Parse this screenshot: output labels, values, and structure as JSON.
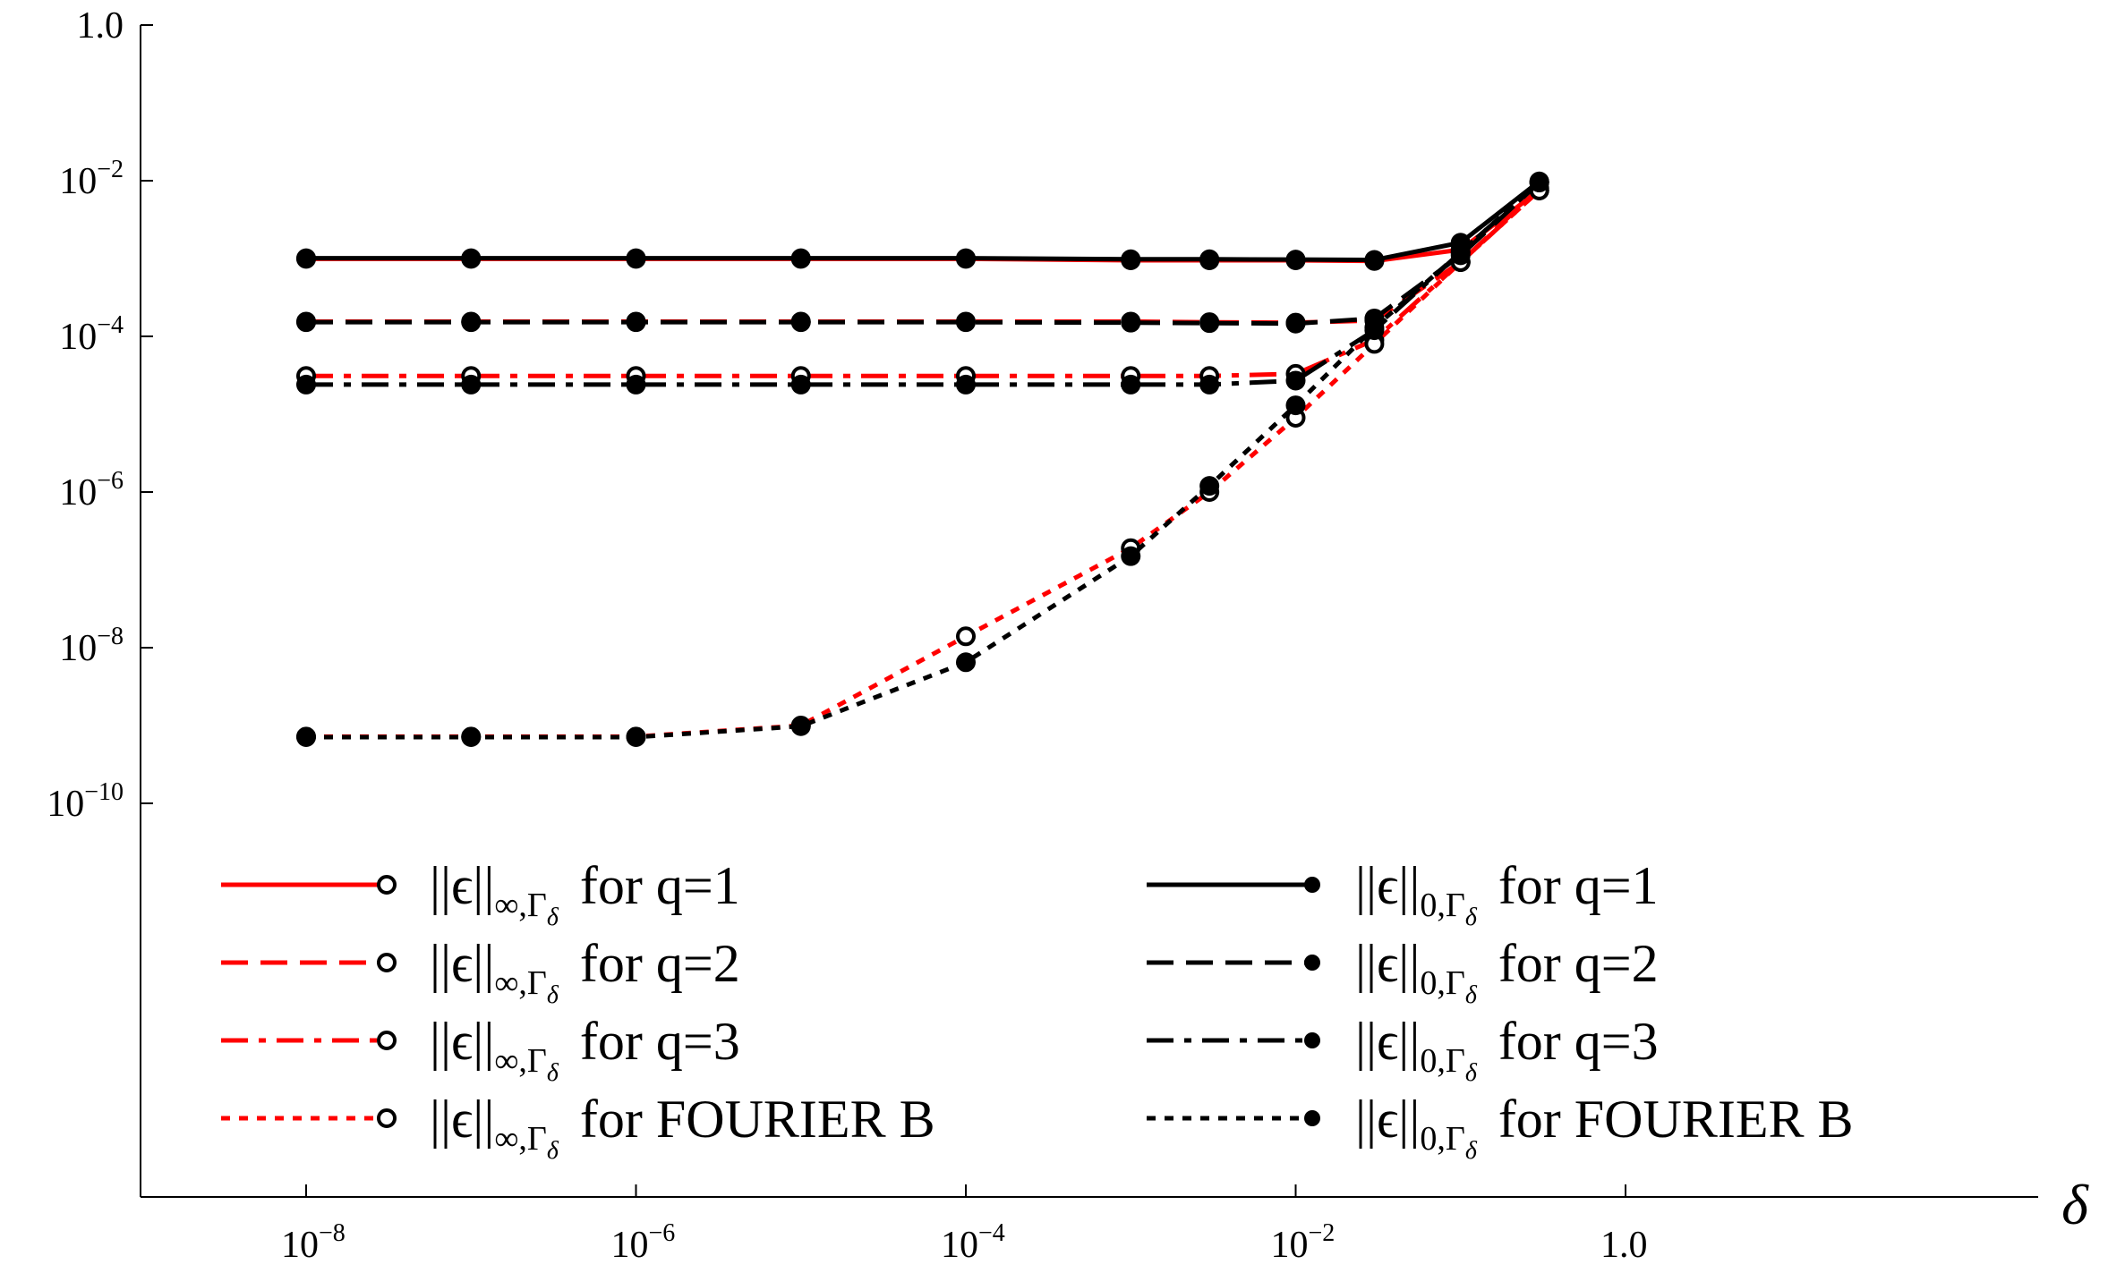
{
  "chart_data": {
    "type": "line",
    "title": "",
    "xlabel": "δ",
    "ylabel": "",
    "x_scale": "log",
    "y_scale": "log",
    "xlim": [
      1e-09,
      10
    ],
    "ylim": [
      1e-15,
      1
    ],
    "x_ticks": [
      {
        "value": 1e-08,
        "base": "10",
        "exp": "−8"
      },
      {
        "value": 1e-06,
        "base": "10",
        "exp": "−6"
      },
      {
        "value": 0.0001,
        "base": "10",
        "exp": "−4"
      },
      {
        "value": 0.01,
        "base": "10",
        "exp": "−2"
      },
      {
        "value": 1,
        "base": "1.0",
        "exp": ""
      }
    ],
    "y_ticks": [
      {
        "value": 1,
        "base": "1.0",
        "exp": ""
      },
      {
        "value": 0.01,
        "base": "10",
        "exp": "−2"
      },
      {
        "value": 0.0001,
        "base": "10",
        "exp": "−4"
      },
      {
        "value": 1e-06,
        "base": "10",
        "exp": "−6"
      },
      {
        "value": 1e-08,
        "base": "10",
        "exp": "−8"
      },
      {
        "value": 1e-10,
        "base": "10",
        "exp": "−10"
      }
    ],
    "grid": false,
    "legend_position": "bottom, two columns",
    "x": [
      1e-08,
      1e-07,
      1e-06,
      1e-05,
      0.0001,
      0.001,
      0.003,
      0.01,
      0.03,
      0.1,
      0.3
    ],
    "series": [
      {
        "name": "for q=1",
        "norm": "inf",
        "color": "#ff0000",
        "dash": "solid",
        "marker": "open",
        "values": [
          0.00099,
          0.00099,
          0.00099,
          0.00099,
          0.00099,
          0.00095,
          0.00095,
          0.00095,
          0.00093,
          0.0013,
          0.0075
        ]
      },
      {
        "name": "for q=2",
        "norm": "inf",
        "color": "#ff0000",
        "dash": "dashed",
        "marker": "open",
        "values": [
          0.000155,
          0.000155,
          0.000155,
          0.000155,
          0.000155,
          0.000155,
          0.000152,
          0.00015,
          0.00016,
          0.0009,
          0.008
        ]
      },
      {
        "name": "for q=3",
        "norm": "inf",
        "color": "#ff0000",
        "dash": "dashdot",
        "marker": "open",
        "values": [
          3.1e-05,
          3.1e-05,
          3.1e-05,
          3.1e-05,
          3.1e-05,
          3.1e-05,
          3.1e-05,
          3.3e-05,
          9e-05,
          0.0009,
          0.0075
        ]
      },
      {
        "name": "for FOURIER B",
        "norm": "inf",
        "color": "#ff0000",
        "dash": "dotted",
        "marker": "open",
        "values": [
          7.2e-10,
          7.2e-10,
          7.2e-10,
          1e-09,
          1.4e-08,
          1.9e-07,
          1e-06,
          9e-06,
          8e-05,
          0.0009,
          0.0075
        ]
      },
      {
        "name": "for q=1",
        "norm": "zero",
        "color": "#000000",
        "dash": "solid",
        "marker": "filled",
        "values": [
          0.00101,
          0.00101,
          0.00101,
          0.00101,
          0.00101,
          0.00098,
          0.00098,
          0.00097,
          0.00096,
          0.0016,
          0.0098
        ]
      },
      {
        "name": "for q=2",
        "norm": "zero",
        "color": "#000000",
        "dash": "dashed",
        "marker": "filled",
        "values": [
          0.000152,
          0.000152,
          0.000152,
          0.000152,
          0.000152,
          0.00015,
          0.000148,
          0.000146,
          0.00017,
          0.0011,
          0.0095
        ]
      },
      {
        "name": "for q=3",
        "norm": "zero",
        "color": "#000000",
        "dash": "dashdot",
        "marker": "filled",
        "values": [
          2.4e-05,
          2.4e-05,
          2.4e-05,
          2.4e-05,
          2.4e-05,
          2.4e-05,
          2.4e-05,
          2.7e-05,
          0.00012,
          0.0012,
          0.0095
        ]
      },
      {
        "name": "for FOURIER B",
        "norm": "zero",
        "color": "#000000",
        "dash": "dotted",
        "marker": "filled",
        "values": [
          7.1e-10,
          7.1e-10,
          7.1e-10,
          9.8e-10,
          6.5e-09,
          1.5e-07,
          1.2e-06,
          1.3e-05,
          0.00013,
          0.0012,
          0.0095
        ]
      }
    ],
    "legend": {
      "symbol": "||ϵ||",
      "norm_inf": "∞,Γ",
      "norm_zero": "0,Γ",
      "delta_sub": "δ"
    }
  }
}
